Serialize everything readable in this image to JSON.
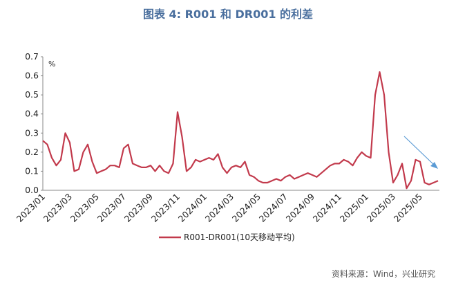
{
  "chart_data": {
    "type": "line",
    "title": "图表 4: R001 和 DR001 的利差",
    "unit_label": "%",
    "source": "资料来源：Wind，兴业研究",
    "categories": [
      "2023/01",
      null,
      null,
      null,
      null,
      null,
      "2023/03",
      null,
      null,
      null,
      null,
      null,
      "2023/05",
      null,
      null,
      null,
      null,
      null,
      "2023/07",
      null,
      null,
      null,
      null,
      null,
      "2023/09",
      null,
      null,
      null,
      null,
      null,
      "2023/11",
      null,
      null,
      null,
      null,
      null,
      "2024/01",
      null,
      null,
      null,
      null,
      null,
      "2024/03",
      null,
      null,
      null,
      null,
      null,
      "2024/05",
      null,
      null,
      null,
      null,
      null,
      "2024/07",
      null,
      null,
      null,
      null,
      null,
      "2024/09",
      null,
      null,
      null,
      null,
      null,
      "2024/11",
      null,
      null,
      null,
      null,
      null,
      "2025/01",
      null,
      null,
      null,
      null,
      null,
      "2025/03",
      null,
      null,
      null,
      null,
      null,
      "2025/05",
      null,
      null,
      null,
      null
    ],
    "series": [
      {
        "name": "R001-DR001(10天移动平均)",
        "color": "#c23a4c",
        "values": [
          0.26,
          0.24,
          0.17,
          0.13,
          0.16,
          0.3,
          0.25,
          0.1,
          0.11,
          0.2,
          0.24,
          0.15,
          0.09,
          0.1,
          0.11,
          0.13,
          0.13,
          0.12,
          0.22,
          0.24,
          0.14,
          0.13,
          0.12,
          0.12,
          0.13,
          0.1,
          0.13,
          0.1,
          0.09,
          0.14,
          0.41,
          0.28,
          0.1,
          0.12,
          0.16,
          0.15,
          0.16,
          0.17,
          0.16,
          0.19,
          0.12,
          0.09,
          0.12,
          0.13,
          0.12,
          0.15,
          0.08,
          0.07,
          0.05,
          0.04,
          0.04,
          0.05,
          0.06,
          0.05,
          0.07,
          0.08,
          0.06,
          0.07,
          0.08,
          0.09,
          0.08,
          0.07,
          0.09,
          0.11,
          0.13,
          0.14,
          0.14,
          0.16,
          0.15,
          0.13,
          0.17,
          0.2,
          0.18,
          0.17,
          0.5,
          0.62,
          0.5,
          0.2,
          0.04,
          0.08,
          0.14,
          0.01,
          0.05,
          0.16,
          0.15,
          0.04,
          0.03,
          0.04,
          0.05
        ]
      }
    ],
    "ylim": [
      0,
      0.7
    ],
    "yticks": [
      {
        "value": 0,
        "label": "0.0"
      },
      0.1,
      0.2,
      0.3,
      0.4,
      0.5,
      0.6,
      0.7
    ]
  }
}
